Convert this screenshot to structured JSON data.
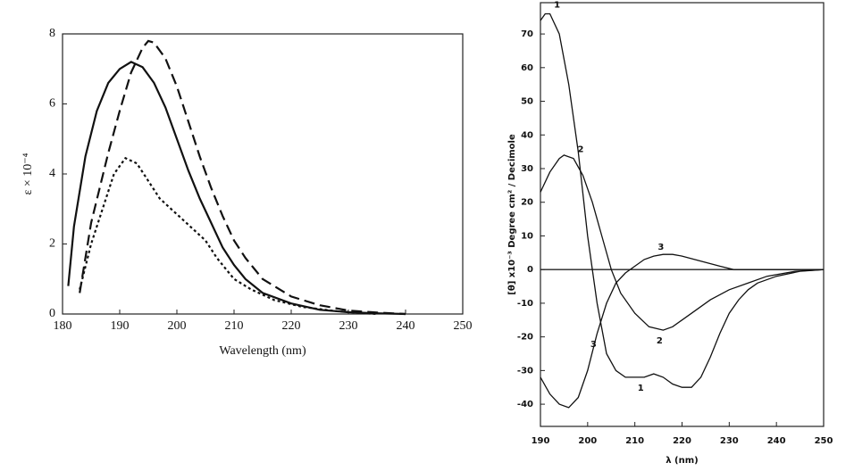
{
  "chart_data": [
    {
      "type": "line",
      "xlabel": "Wavelength (nm)",
      "ylabel": "ε × 10⁻⁴",
      "xlim": [
        180,
        250
      ],
      "xticks": [
        180,
        190,
        200,
        210,
        220,
        230,
        240,
        250
      ],
      "ylim": [
        0,
        8
      ],
      "yticks": [
        0,
        2,
        4,
        6,
        8
      ],
      "series": [
        {
          "color": "#111111",
          "dash": "solid",
          "x": [
            181,
            182,
            184,
            186,
            188,
            190,
            192,
            194,
            196,
            198,
            200,
            202,
            204,
            206,
            208,
            210,
            212,
            215,
            220,
            225,
            230,
            235,
            240
          ],
          "values": [
            0.8,
            2.5,
            4.5,
            5.8,
            6.6,
            7.0,
            7.2,
            7.05,
            6.6,
            5.9,
            5.0,
            4.1,
            3.3,
            2.6,
            1.9,
            1.4,
            1.0,
            0.6,
            0.3,
            0.12,
            0.05,
            0.02,
            0
          ]
        },
        {
          "color": "#111111",
          "dash": "dashed",
          "x": [
            183,
            185,
            188,
            190,
            192,
            194,
            195,
            196,
            198,
            200,
            202,
            204,
            206,
            208,
            210,
            212,
            215,
            220,
            225,
            230,
            235,
            240
          ],
          "values": [
            0.6,
            2.6,
            4.6,
            5.8,
            6.9,
            7.6,
            7.8,
            7.75,
            7.3,
            6.5,
            5.5,
            4.5,
            3.6,
            2.8,
            2.1,
            1.6,
            1.0,
            0.5,
            0.25,
            0.1,
            0.04,
            0
          ]
        },
        {
          "color": "#111111",
          "dash": "dotted",
          "x": [
            183,
            185,
            187,
            189,
            191,
            193,
            195,
            197,
            199,
            201,
            203,
            205,
            207,
            210,
            213,
            217,
            222,
            228,
            235
          ],
          "values": [
            0.7,
            2.0,
            3.0,
            4.0,
            4.45,
            4.3,
            3.8,
            3.3,
            3.0,
            2.7,
            2.4,
            2.1,
            1.6,
            1.0,
            0.7,
            0.4,
            0.2,
            0.08,
            0
          ]
        }
      ]
    },
    {
      "type": "line",
      "xlabel": "λ (nm)",
      "ylabel": "[θ] x10⁻³ Degree cm² / Decimole",
      "xlim": [
        190,
        250
      ],
      "xticks": [
        190,
        200,
        210,
        220,
        230,
        240,
        250
      ],
      "ylim": [
        -46.6,
        79.3
      ],
      "yticks": [
        -40,
        -30,
        -20,
        -10,
        0,
        10,
        20,
        30,
        40,
        50,
        60,
        70
      ],
      "series": [
        {
          "name": "1",
          "color": "#111111",
          "x": [
            190,
            191,
            192,
            194,
            196,
            198,
            200,
            202,
            204,
            206,
            208,
            210,
            212,
            214,
            216,
            218,
            220,
            222,
            224,
            226,
            228,
            230,
            232,
            234,
            236,
            240,
            245,
            250
          ],
          "values": [
            74,
            76,
            76,
            70,
            55,
            35,
            10,
            -10,
            -25,
            -30,
            -32,
            -32,
            -32,
            -31,
            -32,
            -34,
            -35,
            -35,
            -32,
            -26,
            -19,
            -13,
            -9,
            -6,
            -4,
            -2,
            -0.5,
            0
          ]
        },
        {
          "name": "2",
          "color": "#111111",
          "x": [
            190,
            192,
            194,
            195,
            197,
            199,
            201,
            203,
            205,
            207,
            210,
            213,
            216,
            218,
            222,
            226,
            230,
            234,
            238,
            244,
            250
          ],
          "values": [
            23,
            29,
            33,
            34,
            33,
            28,
            20,
            10,
            0,
            -7,
            -13,
            -17,
            -18,
            -17,
            -13,
            -9,
            -6,
            -4,
            -2,
            -0.5,
            0
          ]
        },
        {
          "name": "3",
          "color": "#111111",
          "x": [
            190,
            192,
            194,
            196,
            198,
            200,
            202,
            204,
            206,
            208,
            210,
            212,
            214,
            216,
            218,
            220,
            224,
            228,
            231,
            250
          ],
          "values": [
            -32,
            -37,
            -40,
            -41,
            -38,
            -30,
            -19,
            -10,
            -4,
            -1,
            1,
            3,
            4,
            4.5,
            4.5,
            4,
            2.5,
            1,
            0,
            0
          ]
        }
      ]
    }
  ]
}
